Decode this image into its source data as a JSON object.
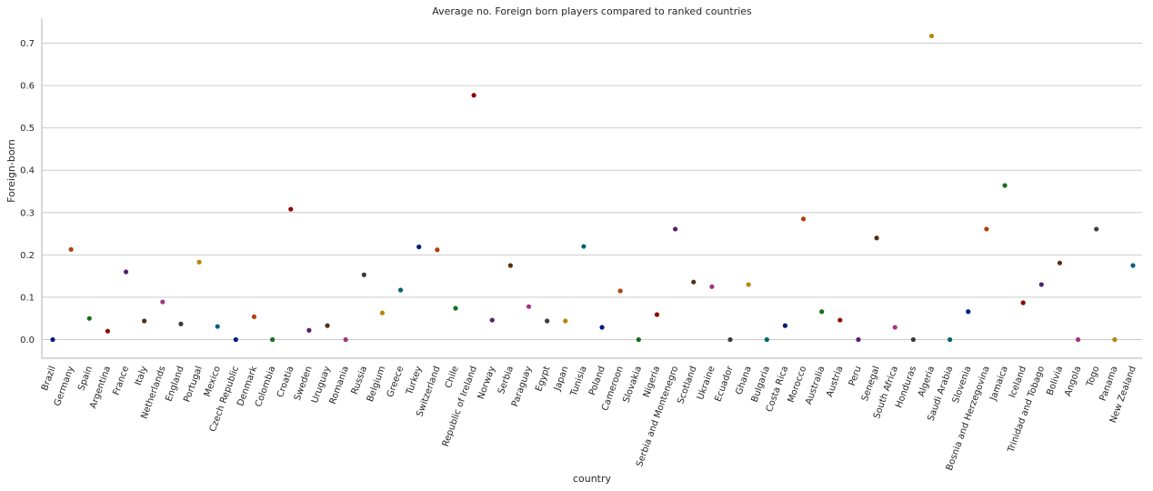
{
  "chart_data": {
    "type": "scatter",
    "title": "Average no. Foreign born players compared to ranked countries",
    "xlabel": "country",
    "ylabel": "Foreign-born",
    "ylim": [
      -0.045,
      0.76
    ],
    "yticks": [
      "0.0",
      "0.1",
      "0.2",
      "0.3",
      "0.4",
      "0.5",
      "0.6",
      "0.7"
    ],
    "grid": "horizontal",
    "categories": [
      "Brazil",
      "Germany",
      "Spain",
      "Argentina",
      "France",
      "Italy",
      "Netherlands",
      "England",
      "Portugal",
      "Mexico",
      "Czech Republic",
      "Denmark",
      "Colombia",
      "Croatia",
      "Sweden",
      "Uruguay",
      "Romania",
      "Russia",
      "Belgium",
      "Greece",
      "Turkey",
      "Switzerland",
      "Chile",
      "Republic of Ireland",
      "Norway",
      "Serbia",
      "Paraguay",
      "Egypt",
      "Japan",
      "Tunisia",
      "Poland",
      "Cameroon",
      "Slovakia",
      "Nigeria",
      "Serbia and Montenegro",
      "Scotland",
      "Ukraine",
      "Ecuador",
      "Ghana",
      "Bulgaria",
      "Costa Rica",
      "Morocco",
      "Australia",
      "Austria",
      "Peru",
      "Senegal",
      "South Africa",
      "Honduras",
      "Algeria",
      "Saudi Arabia",
      "Slovenia",
      "Bosnia and Herzegovina",
      "Jamaica",
      "Iceland",
      "Trinidad and Tobago",
      "Bolivia",
      "Angola",
      "Togo",
      "Panama",
      "New Zealand"
    ],
    "values": [
      0.0,
      0.213,
      0.05,
      0.02,
      0.16,
      0.044,
      0.089,
      0.037,
      0.183,
      0.031,
      0.0,
      0.054,
      0.0,
      0.308,
      0.022,
      0.033,
      0.0,
      0.153,
      0.063,
      0.117,
      0.219,
      0.212,
      0.074,
      0.577,
      0.046,
      0.175,
      0.078,
      0.044,
      0.044,
      0.22,
      0.029,
      0.115,
      0.0,
      0.059,
      0.261,
      0.136,
      0.125,
      0.0,
      0.13,
      0.0,
      0.033,
      0.285,
      0.066,
      0.046,
      0.0,
      0.24,
      0.029,
      0.0,
      0.717,
      0.0,
      0.066,
      0.261,
      0.364,
      0.087,
      0.13,
      0.181,
      0.0,
      0.261,
      0.0,
      0.175
    ],
    "palette": [
      "#001c7f",
      "#b1400d",
      "#12711c",
      "#8c0800",
      "#591e71",
      "#592f0d",
      "#a23582",
      "#3c3c3c",
      "#b8850a",
      "#006374"
    ]
  }
}
